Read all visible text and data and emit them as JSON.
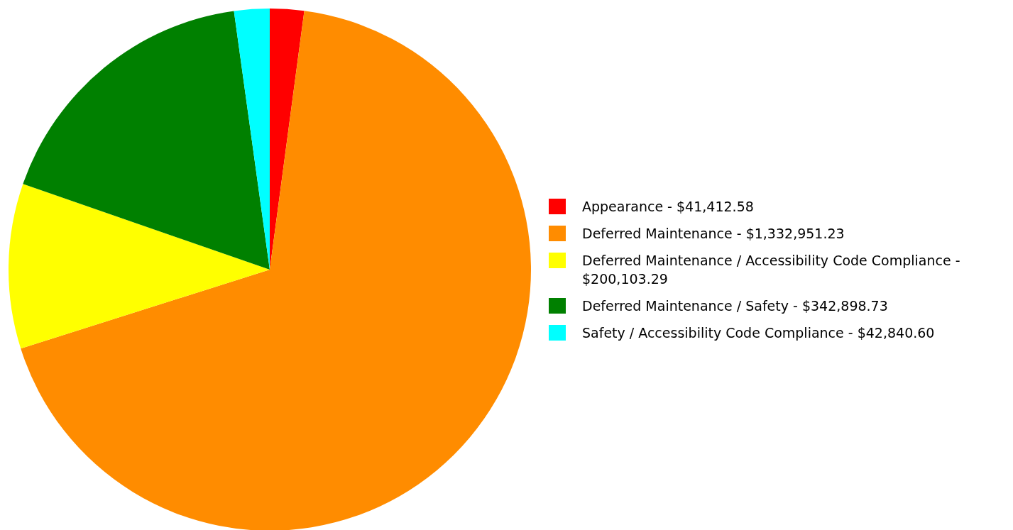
{
  "chart_data": {
    "type": "pie",
    "categories": [
      "Appearance - $41,412.58",
      "Deferred Maintenance - $1,332,951.23",
      "Deferred Maintenance / Accessibility Code Compliance - $200,103.29",
      "Deferred Maintenance / Safety - $342,898.73",
      "Safety / Accessibility Code Compliance - $42,840.60"
    ],
    "values": [
      2.11,
      68.0,
      10.21,
      17.49,
      2.19
    ],
    "colors": [
      "#ff0000",
      "#ff8c00",
      "#ffff00",
      "#008000",
      "#00ffff"
    ],
    "legend": "right"
  }
}
